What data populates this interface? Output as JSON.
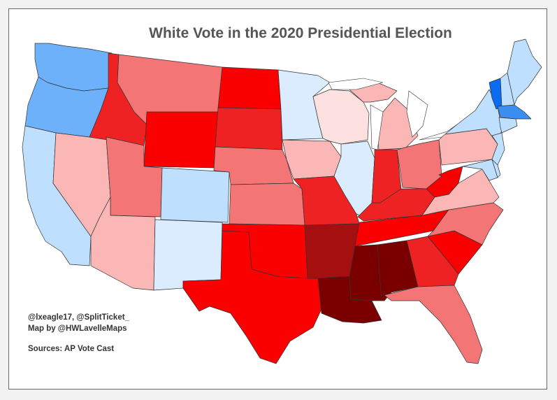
{
  "title": "White Vote in the 2020 Presidential Election",
  "credits": {
    "line1": "@lxeagle17, @SplitTicket_",
    "line2": "Map by @HWLavelleMaps",
    "sources": "Sources: AP Vote Cast"
  },
  "colors": {
    "safe_r": "#7a0000",
    "strong_r": "#a50f0f",
    "likely_r": "#ee2222",
    "lean_r": "#fa0000",
    "mid_r": "#f37575",
    "tilt_r": "#fbb6b6",
    "faint_r": "#fde0e0",
    "faint_d": "#dcecff",
    "tilt_d": "#bfdfff",
    "lean_d": "#6eb1fb",
    "likely_d": "#3a8ef0",
    "strong_d": "#0a6cf0",
    "water": "#ffffff",
    "border": "#333333"
  },
  "states": [
    {
      "id": "WA",
      "shade": "lean_d"
    },
    {
      "id": "OR",
      "shade": "lean_d"
    },
    {
      "id": "CA",
      "shade": "tilt_d"
    },
    {
      "id": "NV",
      "shade": "tilt_r"
    },
    {
      "id": "ID",
      "shade": "likely_r"
    },
    {
      "id": "MT",
      "shade": "mid_r"
    },
    {
      "id": "WY",
      "shade": "lean_r"
    },
    {
      "id": "UT",
      "shade": "mid_r"
    },
    {
      "id": "AZ",
      "shade": "tilt_r"
    },
    {
      "id": "CO",
      "shade": "tilt_d"
    },
    {
      "id": "NM",
      "shade": "faint_d"
    },
    {
      "id": "ND",
      "shade": "lean_r"
    },
    {
      "id": "SD",
      "shade": "likely_r"
    },
    {
      "id": "NE",
      "shade": "mid_r"
    },
    {
      "id": "KS",
      "shade": "mid_r"
    },
    {
      "id": "OK",
      "shade": "lean_r"
    },
    {
      "id": "TX",
      "shade": "lean_r"
    },
    {
      "id": "MN",
      "shade": "faint_d"
    },
    {
      "id": "IA",
      "shade": "tilt_r"
    },
    {
      "id": "MO",
      "shade": "likely_r"
    },
    {
      "id": "AR",
      "shade": "strong_r"
    },
    {
      "id": "LA",
      "shade": "safe_r"
    },
    {
      "id": "WI",
      "shade": "faint_r"
    },
    {
      "id": "IL",
      "shade": "faint_d"
    },
    {
      "id": "MI",
      "shade": "tilt_r"
    },
    {
      "id": "IN",
      "shade": "likely_r"
    },
    {
      "id": "OH",
      "shade": "mid_r"
    },
    {
      "id": "KY",
      "shade": "likely_r"
    },
    {
      "id": "TN",
      "shade": "lean_r"
    },
    {
      "id": "MS",
      "shade": "safe_r"
    },
    {
      "id": "AL",
      "shade": "safe_r"
    },
    {
      "id": "GA",
      "shade": "likely_r"
    },
    {
      "id": "FL",
      "shade": "mid_r"
    },
    {
      "id": "SC",
      "shade": "lean_r"
    },
    {
      "id": "NC",
      "shade": "mid_r"
    },
    {
      "id": "VA",
      "shade": "tilt_r"
    },
    {
      "id": "WV",
      "shade": "lean_r"
    },
    {
      "id": "PA",
      "shade": "tilt_r"
    },
    {
      "id": "NY",
      "shade": "tilt_d"
    },
    {
      "id": "VT",
      "shade": "strong_d"
    },
    {
      "id": "NH",
      "shade": "tilt_d"
    },
    {
      "id": "ME",
      "shade": "tilt_d"
    },
    {
      "id": "MA",
      "shade": "likely_d"
    },
    {
      "id": "CT",
      "shade": "tilt_d"
    },
    {
      "id": "NJ",
      "shade": "tilt_d"
    },
    {
      "id": "MD",
      "shade": "tilt_d"
    },
    {
      "id": "DE",
      "shade": "tilt_d"
    }
  ]
}
